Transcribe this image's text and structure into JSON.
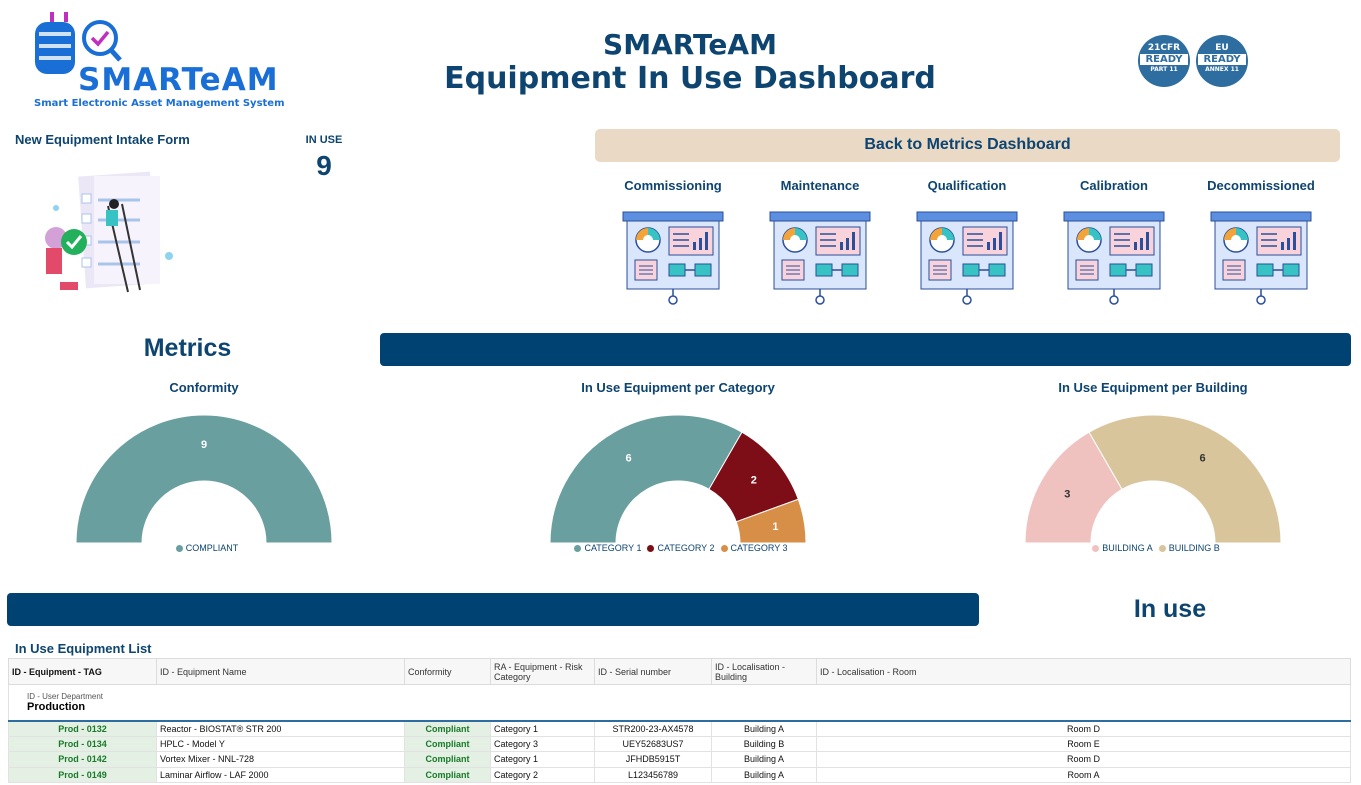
{
  "header": {
    "logo_name": "SMARTeAM",
    "logo_subtitle": "Smart Electronic Asset Management System",
    "title_line1": "SMARTeAM",
    "title_line2": "Equipment In Use Dashboard",
    "badges": [
      {
        "top": "21CFR",
        "mid": "READY",
        "bottom": "PART 11"
      },
      {
        "top": "EU",
        "mid": "READY",
        "bottom": "ANNEX 11"
      }
    ]
  },
  "intake": {
    "label": "New Equipment Intake Form",
    "icon": "checklist-illustration"
  },
  "kpi": {
    "label": "IN USE",
    "value": "9"
  },
  "nav": {
    "back_label": "Back to Metrics Dashboard",
    "tiles": [
      {
        "label": "Commissioning",
        "icon": "dashboard-board-icon"
      },
      {
        "label": "Maintenance",
        "icon": "dashboard-board-icon"
      },
      {
        "label": "Qualification",
        "icon": "dashboard-board-icon"
      },
      {
        "label": "Calibration",
        "icon": "dashboard-board-icon"
      },
      {
        "label": "Decommissioned",
        "icon": "dashboard-board-icon"
      }
    ]
  },
  "metrics": {
    "heading": "Metrics"
  },
  "colors": {
    "compliant": "#6a9fa0",
    "category1": "#6a9fa0",
    "category2": "#7d0d16",
    "category3": "#d78f47",
    "buildingA": "#efc2c0",
    "buildingB": "#d9c59c",
    "accent_bar": "#004271"
  },
  "chart_data": [
    {
      "type": "pie",
      "variant": "half-donut",
      "title": "Conformity",
      "categories": [
        "COMPLIANT"
      ],
      "values": [
        9
      ]
    },
    {
      "type": "pie",
      "variant": "half-donut",
      "title": "In Use Equipment per Category",
      "categories": [
        "CATEGORY 1",
        "CATEGORY 2",
        "CATEGORY 3"
      ],
      "values": [
        6,
        2,
        1
      ]
    },
    {
      "type": "pie",
      "variant": "half-donut",
      "title": "In Use Equipment per Building",
      "categories": [
        "BUILDING A",
        "BUILDING B"
      ],
      "values": [
        3,
        6
      ]
    }
  ],
  "inuse_heading": "In use",
  "list": {
    "title": "In Use Equipment List",
    "columns": [
      "ID - Equipment - TAG",
      "ID - Equipment Name",
      "Conformity",
      "RA - Equipment - Risk Category",
      "ID - Serial number",
      "ID - Localisation - Building",
      "ID - Localisation - Room"
    ],
    "group_label": "ID - User Department",
    "group_value": "Production",
    "rows": [
      {
        "tag": "Prod - 0132",
        "name": "Reactor - BIOSTAT® STR 200",
        "conformity": "Compliant",
        "category": "Category 1",
        "serial": "STR200-23-AX4578",
        "building": "Building A",
        "room": "Room D"
      },
      {
        "tag": "Prod - 0134",
        "name": "HPLC - Model Y",
        "conformity": "Compliant",
        "category": "Category 3",
        "serial": "UEY52683US7",
        "building": "Building B",
        "room": "Room E"
      },
      {
        "tag": "Prod - 0142",
        "name": "Vortex Mixer - NNL-728",
        "conformity": "Compliant",
        "category": "Category 1",
        "serial": "JFHDB5915T",
        "building": "Building A",
        "room": "Room D"
      },
      {
        "tag": "Prod - 0149",
        "name": "Laminar Airflow - LAF 2000",
        "conformity": "Compliant",
        "category": "Category 2",
        "serial": "L123456789",
        "building": "Building A",
        "room": "Room A"
      }
    ]
  }
}
